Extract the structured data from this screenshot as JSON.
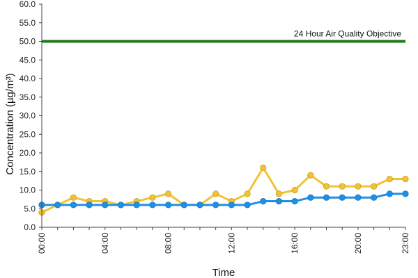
{
  "chart_data": {
    "type": "line",
    "title": "",
    "xlabel": "Time",
    "ylabel": "Concentration (µg/m³)",
    "ylim": [
      0,
      60
    ],
    "ytick_labels": [
      "0.0",
      "5.0",
      "10.0",
      "15.0",
      "20.0",
      "25.0",
      "30.0",
      "35.0",
      "40.0",
      "45.0",
      "50.0",
      "55.0",
      "60.0"
    ],
    "xtick_labels": [
      "00:00",
      "04:00",
      "08:00",
      "12:00",
      "16:00",
      "20:00",
      "23:00"
    ],
    "xtick_hours": [
      0,
      4,
      8,
      12,
      16,
      20,
      23
    ],
    "x": [
      0,
      1,
      2,
      3,
      4,
      5,
      6,
      7,
      8,
      9,
      10,
      11,
      12,
      13,
      14,
      15,
      16,
      17,
      18,
      19,
      20,
      21,
      22,
      23
    ],
    "grid": false,
    "legend": "none",
    "reference_line": {
      "label": "24 Hour Air Quality Objective",
      "value": 50,
      "color": "#1e7a1e"
    },
    "series": [
      {
        "color": "#f2c232",
        "values": [
          4,
          6,
          8,
          7,
          7,
          6,
          7,
          8,
          9,
          6,
          6,
          9,
          7,
          9,
          16,
          9,
          10,
          14,
          11,
          11,
          11,
          11,
          13,
          13
        ]
      },
      {
        "color": "#1e90e6",
        "values": [
          6,
          6,
          6,
          6,
          6,
          6,
          6,
          6,
          6,
          6,
          6,
          6,
          6,
          6,
          7,
          7,
          7,
          8,
          8,
          8,
          8,
          8,
          9,
          9
        ]
      }
    ]
  }
}
